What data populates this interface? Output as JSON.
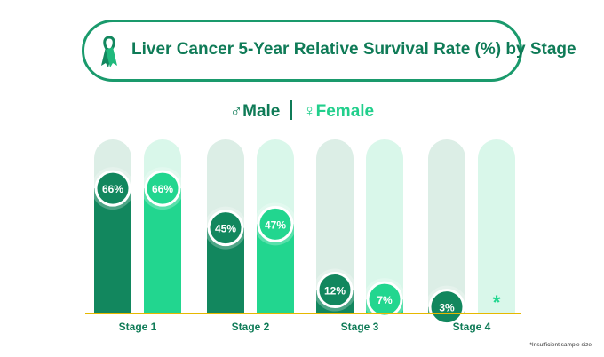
{
  "chart_data": {
    "type": "bar",
    "title": "Liver Cancer 5-Year Relative Survival Rate (%) by Stage",
    "categories": [
      "Stage 1",
      "Stage 2",
      "Stage 3",
      "Stage 4"
    ],
    "series": [
      {
        "name": "Male",
        "values": [
          66,
          45,
          12,
          3
        ],
        "labels": [
          "66%",
          "45%",
          "12%",
          "3%"
        ],
        "color": "#12875e"
      },
      {
        "name": "Female",
        "values": [
          66,
          47,
          7,
          null
        ],
        "labels": [
          "66%",
          "47%",
          "7%",
          "*"
        ],
        "color": "#22d68f"
      }
    ],
    "ylim": [
      0,
      100
    ],
    "legend": {
      "male": "Male",
      "female": "Female",
      "male_symbol": "♂",
      "female_symbol": "♀"
    },
    "footnote": "*Insufficient sample size"
  },
  "colors": {
    "dark": "#12875e",
    "light": "#22d68f",
    "track_dark": "#dceee6",
    "track_light": "#d9f7ea",
    "baseline": "#e6b800"
  }
}
